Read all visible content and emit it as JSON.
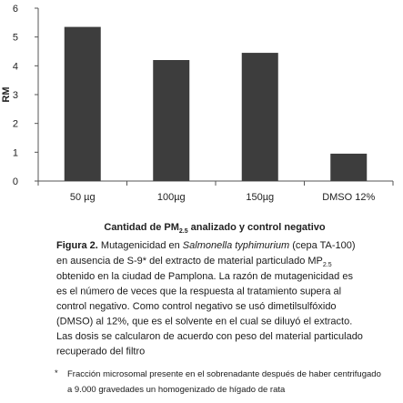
{
  "chart_data": {
    "type": "bar",
    "y_label": "RM",
    "x_label": [
      "Cantidad de PM",
      "2.5",
      " analizado y control negativo"
    ],
    "categories": [
      "50 µg",
      "100µg",
      "150µg",
      "DMSO 12%"
    ],
    "values": [
      5.35,
      4.2,
      4.45,
      0.95
    ],
    "color": "#3d3d3d",
    "ylim": [
      0,
      6
    ],
    "yticks": [
      0,
      1,
      2,
      3,
      4,
      5,
      6
    ],
    "grid": false
  },
  "caption": {
    "label": "Figura 2.",
    "line1": [
      " Mutagenicidad en ",
      "Salmonella typhimurium",
      " (cepa TA-100)"
    ],
    "line2": [
      "en ausencia de S-9* del extracto de material particulado MP",
      "2.5"
    ],
    "lines": [
      "obtenido en la ciudad de Pamplona. La razón de mutagenicidad es",
      "es el número de veces que la respuesta al tratamiento supera al",
      "control negativo. Como control negativo se usó dimetilsulfóxido",
      "(DMSO) al 12%, que es el solvente en el cual se diluyó el extracto.",
      " Las dosis se calcularon de acuerdo con peso del material particulado",
      " recuperado del filtro"
    ]
  },
  "footnote": {
    "mark": "*",
    "lines": [
      "Fracción microsomal presente en el sobrenadante después de haber centrifugado",
      "a 9.000 gravedades un homogenizado de hígado de rata"
    ]
  }
}
